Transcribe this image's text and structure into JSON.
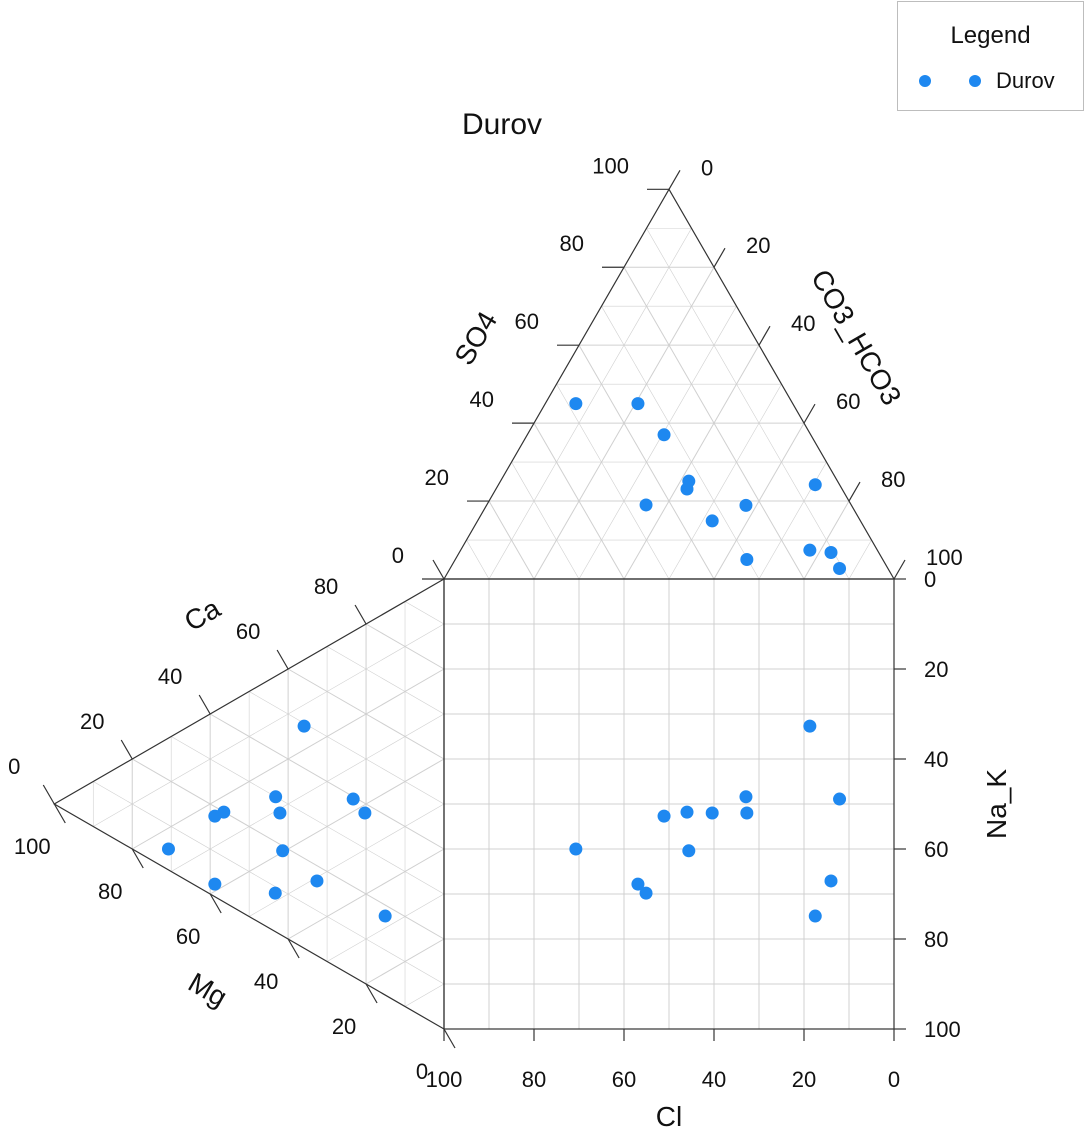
{
  "chart_data": {
    "type": "scatter",
    "subtype": "durov-diagram",
    "title": "Durov",
    "colors": {
      "points": "#1e88f0",
      "frame": "#333333",
      "grid": "#d0d0d0"
    },
    "legend": {
      "title": "Legend",
      "placement": "top-right",
      "entries": [
        {
          "name": "Durov",
          "color": "#1e88f0"
        }
      ]
    },
    "anion_triangle": {
      "left_axis_label": "SO4",
      "right_axis_label": "CO3_HCO3",
      "left_ticks": [
        "0",
        "20",
        "40",
        "60",
        "80",
        "100"
      ],
      "right_ticks": [
        "0",
        "20",
        "40",
        "60",
        "80",
        "100"
      ]
    },
    "cation_triangle": {
      "upper_axis_label": "Ca",
      "lower_axis_label": "Mg",
      "upper_ticks": [
        "0",
        "20",
        "40",
        "60",
        "80"
      ],
      "lower_ticks": [
        "0",
        "20",
        "40",
        "60",
        "80",
        "100"
      ]
    },
    "square": {
      "x_axis_label": "Cl",
      "y_axis_label": "Na_K",
      "x_ticks": [
        "100",
        "80",
        "60",
        "40",
        "20",
        "0"
      ],
      "y_ticks": [
        "0",
        "20",
        "40",
        "60",
        "80",
        "100"
      ],
      "xlim": [
        100,
        0
      ],
      "ylim": [
        0,
        100
      ],
      "grid": true
    },
    "samples": [
      {
        "Cl": 70.7,
        "Na_K": 60.0,
        "SO4": 45.0,
        "Ca": 70.7
      },
      {
        "Cl": 56.9,
        "Na_K": 67.8,
        "SO4": 45.0,
        "Ca": 58.8
      },
      {
        "Cl": 55.1,
        "Na_K": 69.8,
        "SO4": 19.0,
        "Ca": 43.3
      },
      {
        "Cl": 51.1,
        "Na_K": 52.7,
        "SO4": 37.0,
        "Ca": 58.8
      },
      {
        "Cl": 46.0,
        "Na_K": 51.8,
        "SO4": 23.1,
        "Ca": 56.5
      },
      {
        "Cl": 45.6,
        "Na_K": 60.4,
        "SO4": 25.1,
        "Ca": 41.4
      },
      {
        "Cl": 40.4,
        "Na_K": 52.0,
        "SO4": 14.9,
        "Ca": 42.1
      },
      {
        "Cl": 32.9,
        "Na_K": 48.4,
        "SO4": 18.9,
        "Ca": 43.2
      },
      {
        "Cl": 32.7,
        "Na_K": 52.0,
        "SO4": 5.0,
        "Ca": 20.3
      },
      {
        "Cl": 18.7,
        "Na_K": 32.7,
        "SO4": 7.4,
        "Ca": 35.9
      },
      {
        "Cl": 17.5,
        "Na_K": 74.9,
        "SO4": 24.2,
        "Ca": 15.1
      },
      {
        "Cl": 14.0,
        "Na_K": 67.1,
        "SO4": 6.8,
        "Ca": 32.6
      },
      {
        "Cl": 12.1,
        "Na_K": 48.9,
        "SO4": 2.7,
        "Ca": 23.3
      }
    ]
  }
}
